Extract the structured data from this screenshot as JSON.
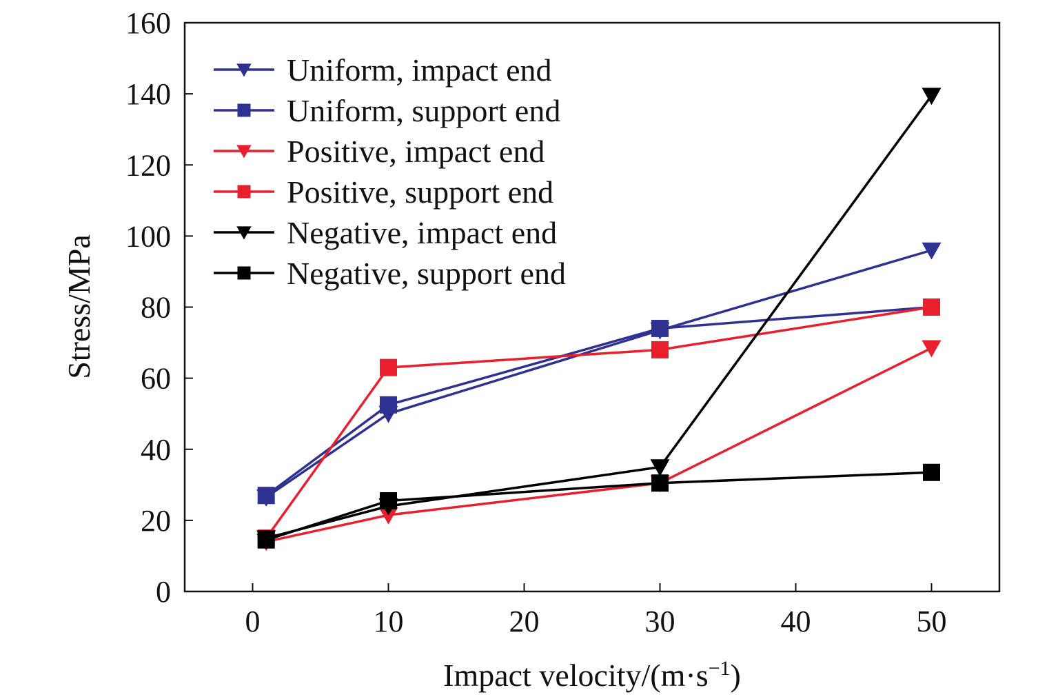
{
  "chart_data": {
    "type": "line",
    "title": "",
    "xlabel": "Impact velocity/(m·s",
    "xlabel_sup": "−1",
    "xlabel_close": ")",
    "ylabel": "Stress/MPa",
    "xlim": [
      -5,
      55
    ],
    "ylim": [
      0,
      160
    ],
    "x_ticks": [
      0,
      10,
      20,
      30,
      40,
      50
    ],
    "y_ticks": [
      0,
      20,
      40,
      60,
      80,
      100,
      120,
      140,
      160
    ],
    "x_tick_labels": [
      "0",
      "10",
      "20",
      "30",
      "40",
      "50"
    ],
    "y_tick_labels": [
      "0",
      "20",
      "40",
      "60",
      "80",
      "100",
      "120",
      "140",
      "160"
    ],
    "grid": false,
    "legend_position": "top-left",
    "x": [
      1,
      10,
      30,
      50
    ],
    "series": [
      {
        "name": "Uniform, impact end",
        "color": "#2e3192",
        "marker": "triangle-down",
        "values": [
          26.5,
          50,
          73.5,
          96
        ]
      },
      {
        "name": "Uniform, support end",
        "color": "#2e3192",
        "marker": "square",
        "values": [
          27,
          52.5,
          74,
          80
        ]
      },
      {
        "name": "Positive, impact end",
        "color": "#e8202e",
        "marker": "triangle-down",
        "values": [
          14,
          21.5,
          30.5,
          68.5
        ]
      },
      {
        "name": "Positive, support end",
        "color": "#e8202e",
        "marker": "square",
        "values": [
          15,
          63,
          68,
          80
        ]
      },
      {
        "name": "Negative, impact end",
        "color": "#000000",
        "marker": "triangle-down",
        "values": [
          15,
          24,
          35,
          139.5
        ]
      },
      {
        "name": "Negative, support end",
        "color": "#000000",
        "marker": "square",
        "values": [
          14.5,
          25.5,
          30.5,
          33.5
        ]
      }
    ]
  }
}
